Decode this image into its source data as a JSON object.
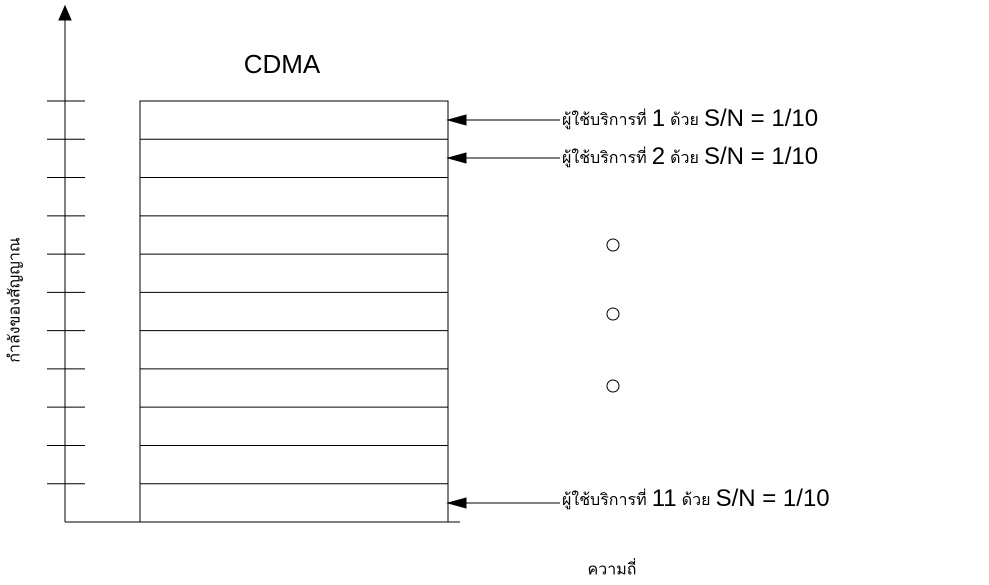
{
  "title": "CDMA",
  "y_axis_label": "กำลังของสัญญาณ",
  "x_axis_label": "ความถี่",
  "annotations": [
    [
      "ผู้ใช้บริการที่",
      "1",
      "ด้วย",
      "S/N = 1/10"
    ],
    [
      "ผู้ใช้บริการที่",
      "2",
      "ด้วย",
      "S/N = 1/10"
    ],
    [
      "ผู้ใช้บริการที่",
      "11",
      "ด้วย",
      "S/N = 1/10"
    ]
  ]
}
